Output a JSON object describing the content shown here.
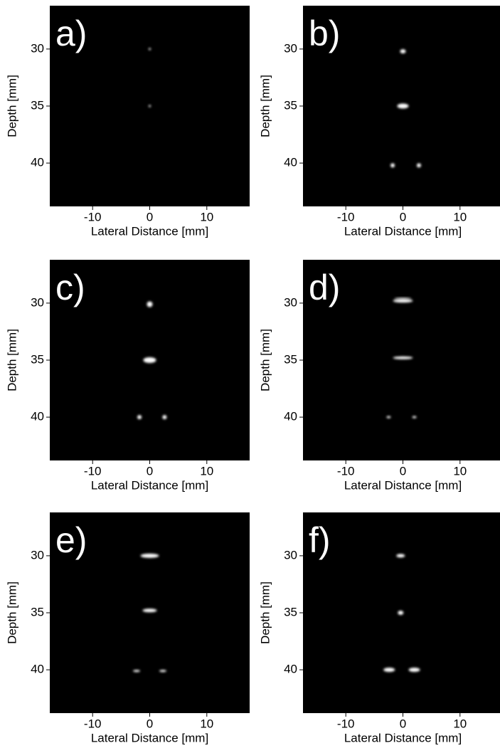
{
  "chart_data": [
    {
      "type": "image",
      "label": "a)",
      "xlabel": "Lateral Distance [mm]",
      "ylabel": "Depth [mm]",
      "x": [
        0,
        0
      ],
      "values": [
        30,
        35
      ],
      "xlim": [
        -17.5,
        17.5
      ],
      "ylim": [
        43.8,
        26.2
      ],
      "xticks": [
        -10,
        0,
        10
      ],
      "yticks": [
        30,
        35,
        40
      ]
    },
    {
      "type": "image",
      "label": "b)",
      "xlabel": "Lateral Distance [mm]",
      "ylabel": "Depth [mm]",
      "x": [
        0,
        0,
        -1.8,
        2.8
      ],
      "values": [
        30.2,
        35,
        40.2,
        40.2
      ],
      "xlim": [
        -17.5,
        17.5
      ],
      "ylim": [
        43.8,
        26.2
      ],
      "xticks": [
        -10,
        0,
        10
      ],
      "yticks": [
        30,
        35,
        40
      ]
    },
    {
      "type": "image",
      "label": "c)",
      "xlabel": "Lateral Distance [mm]",
      "ylabel": "Depth [mm]",
      "x": [
        0,
        0,
        -1.8,
        2.6
      ],
      "values": [
        30.1,
        35,
        40,
        40
      ],
      "xlim": [
        -17.5,
        17.5
      ],
      "ylim": [
        43.8,
        26.2
      ],
      "xticks": [
        -10,
        0,
        10
      ],
      "yticks": [
        30,
        35,
        40
      ]
    },
    {
      "type": "image",
      "label": "d)",
      "xlabel": "Lateral Distance [mm]",
      "ylabel": "Depth [mm]",
      "x": [
        0,
        0,
        -2.5,
        2,
        0
      ],
      "values": [
        29.8,
        34.8,
        40,
        40,
        29.6
      ],
      "xlim": [
        -17.5,
        17.5
      ],
      "ylim": [
        43.8,
        26.2
      ],
      "xticks": [
        -10,
        0,
        10
      ],
      "yticks": [
        30,
        35,
        40
      ]
    },
    {
      "type": "image",
      "label": "e)",
      "xlabel": "Lateral Distance [mm]",
      "ylabel": "Depth [mm]",
      "x": [
        0,
        0,
        -2.3,
        2.3
      ],
      "values": [
        30,
        34.8,
        40.1,
        40.1
      ],
      "xlim": [
        -17.5,
        17.5
      ],
      "ylim": [
        43.8,
        26.2
      ],
      "xticks": [
        -10,
        0,
        10
      ],
      "yticks": [
        30,
        35,
        40
      ]
    },
    {
      "type": "image",
      "label": "f)",
      "xlabel": "Lateral Distance [mm]",
      "ylabel": "Depth [mm]",
      "x": [
        -0.4,
        -0.4,
        -2.4,
        2
      ],
      "values": [
        30,
        35,
        40,
        40
      ],
      "xlim": [
        -17.5,
        17.5
      ],
      "ylim": [
        43.8,
        26.2
      ],
      "xticks": [
        -10,
        0,
        10
      ],
      "yticks": [
        30,
        35,
        40
      ]
    }
  ]
}
